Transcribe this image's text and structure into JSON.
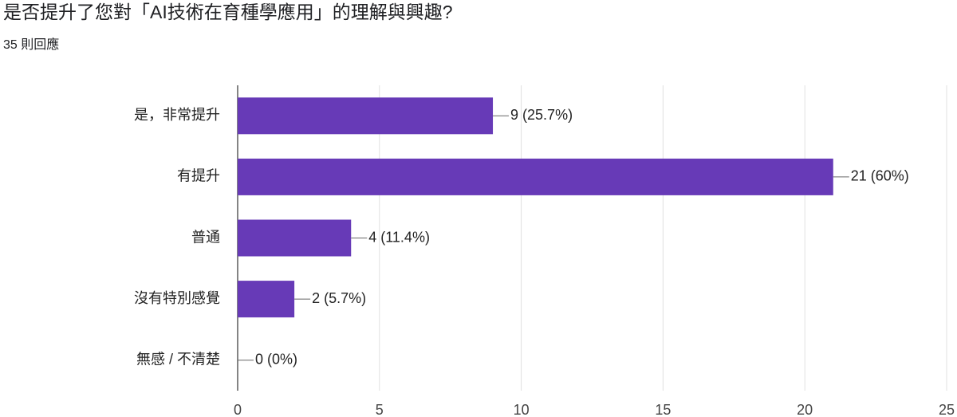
{
  "chart_data": {
    "type": "bar",
    "orientation": "horizontal",
    "title": "是否提升了您對「AI技術在育種學應用」的理解與興趣?",
    "subtitle": "35 則回應",
    "categories": [
      "是，非常提升",
      "有提升",
      "普通",
      "沒有特別感覺",
      "無感 / 不清楚"
    ],
    "values": [
      9,
      21,
      4,
      2,
      0
    ],
    "value_labels": [
      "9 (25.7%)",
      "21 (60%)",
      "4 (11.4%)",
      "2 (5.7%)",
      "0 (0%)"
    ],
    "color": "#673ab7",
    "xlim": [
      0,
      25
    ],
    "xticks": [
      0,
      5,
      10,
      15,
      20,
      25
    ],
    "grid": true
  }
}
